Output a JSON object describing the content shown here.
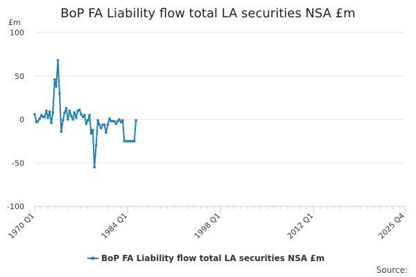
{
  "chart_data": {
    "type": "line",
    "title": "BoP FA Liability flow total LA securities NSA £m",
    "unit_label": "£m",
    "source_label": "Source:",
    "ylim": [
      -100,
      100
    ],
    "yticks": [
      100,
      50,
      0,
      -50,
      -100
    ],
    "x_range": [
      "1970 Q1",
      "2025 Q4"
    ],
    "xticks": [
      "1970 Q1",
      "1984 Q1",
      "1998 Q1",
      "2012 Q1",
      "2025 Q4"
    ],
    "grid": "horizontal",
    "legend_position": "bottom-center",
    "series": [
      {
        "name": "BoP FA Liability flow total LA securities NSA £m",
        "color": "#1f7fb5",
        "points": [
          [
            "1970 Q1",
            6
          ],
          [
            "1970 Q2",
            -3
          ],
          [
            "1970 Q3",
            -2
          ],
          [
            "1970 Q4",
            1
          ],
          [
            "1971 Q1",
            5
          ],
          [
            "1971 Q2",
            3
          ],
          [
            "1971 Q3",
            3
          ],
          [
            "1971 Q4",
            10
          ],
          [
            "1972 Q1",
            2
          ],
          [
            "1972 Q2",
            9
          ],
          [
            "1972 Q3",
            -4
          ],
          [
            "1972 Q4",
            8
          ],
          [
            "1973 Q1",
            46
          ],
          [
            "1973 Q2",
            38
          ],
          [
            "1973 Q3",
            68
          ],
          [
            "1973 Q4",
            30
          ],
          [
            "1974 Q1",
            -14
          ],
          [
            "1974 Q2",
            -1
          ],
          [
            "1974 Q3",
            8
          ],
          [
            "1974 Q4",
            13
          ],
          [
            "1975 Q1",
            0
          ],
          [
            "1975 Q2",
            10
          ],
          [
            "1975 Q3",
            4
          ],
          [
            "1975 Q4",
            0
          ],
          [
            "1976 Q1",
            8
          ],
          [
            "1976 Q2",
            2
          ],
          [
            "1976 Q3",
            10
          ],
          [
            "1976 Q4",
            11
          ],
          [
            "1977 Q1",
            6
          ],
          [
            "1977 Q2",
            3
          ],
          [
            "1977 Q3",
            5
          ],
          [
            "1977 Q4",
            -5
          ],
          [
            "1978 Q1",
            -1
          ],
          [
            "1978 Q2",
            5
          ],
          [
            "1978 Q3",
            -16
          ],
          [
            "1978 Q4",
            -12
          ],
          [
            "1979 Q1",
            -55
          ],
          [
            "1979 Q2",
            -30
          ],
          [
            "1979 Q3",
            -1
          ],
          [
            "1979 Q4",
            -6
          ],
          [
            "1980 Q1",
            -10
          ],
          [
            "1980 Q2",
            -6
          ],
          [
            "1980 Q3",
            -6
          ],
          [
            "1980 Q4",
            -15
          ],
          [
            "1981 Q1",
            -6
          ],
          [
            "1981 Q2",
            1
          ],
          [
            "1981 Q3",
            -2
          ],
          [
            "1981 Q4",
            -2
          ],
          [
            "1982 Q1",
            -2
          ],
          [
            "1982 Q2",
            -5
          ],
          [
            "1982 Q3",
            -2
          ],
          [
            "1982 Q4",
            0
          ],
          [
            "1983 Q1",
            -3
          ],
          [
            "1983 Q2",
            -1
          ],
          [
            "1983 Q3",
            -25
          ],
          [
            "1983 Q4",
            -25
          ],
          [
            "1984 Q1",
            -25
          ],
          [
            "1984 Q2",
            -25
          ],
          [
            "1984 Q3",
            -25
          ],
          [
            "1984 Q4",
            -25
          ],
          [
            "1985 Q1",
            -25
          ],
          [
            "1985 Q2",
            -1
          ]
        ]
      }
    ]
  }
}
